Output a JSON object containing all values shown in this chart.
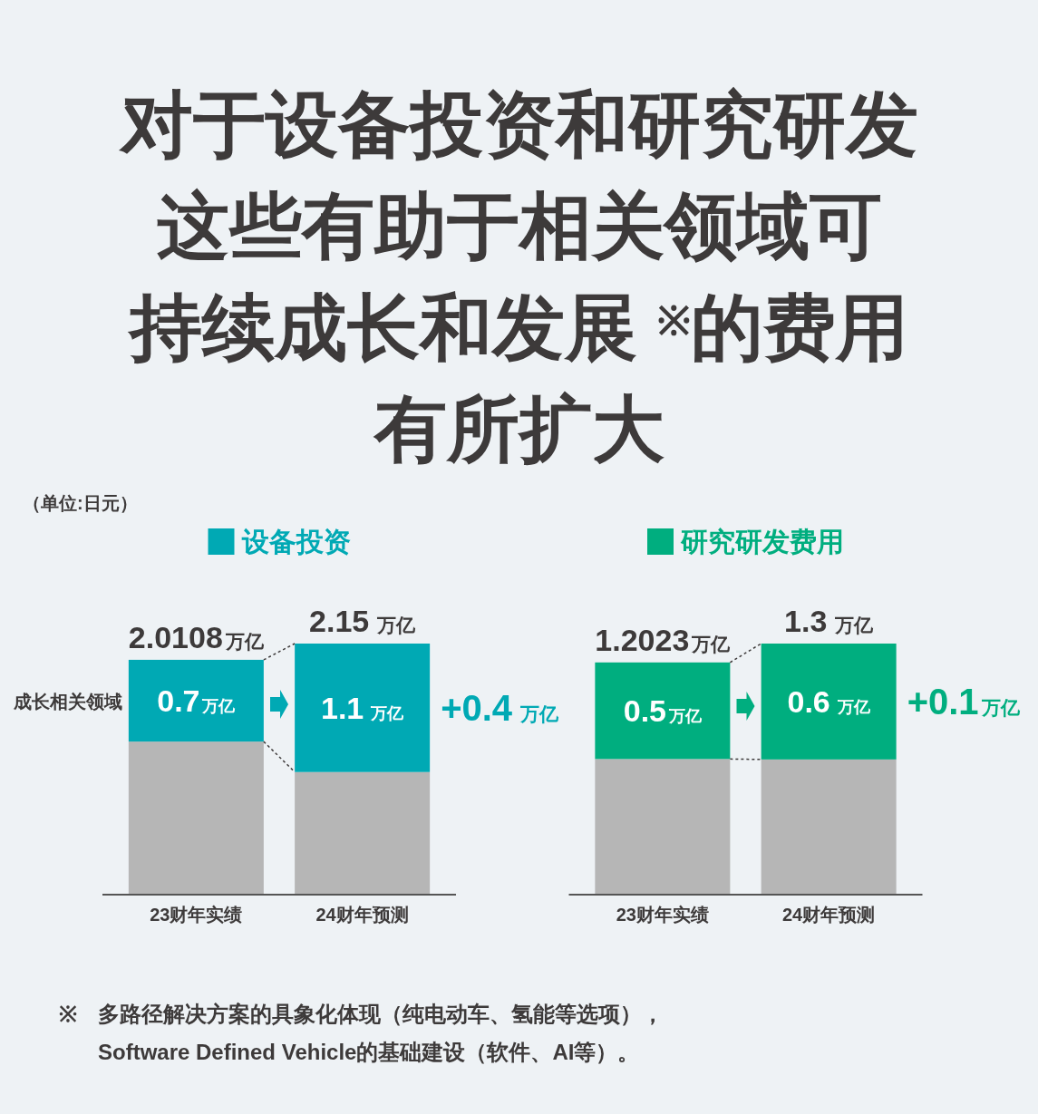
{
  "chart_data": [
    {
      "type": "other",
      "title": "对于设备投资和研究研发这些有助于相关领域可持续成长和发展 $^{※}$的费用有所扩大"
    },
    {
      "type": "bar",
      "stacked": true,
      "categories": [
        "23财年实绩",
        "24财年预测"
      ],
      "series": [
        {
          "color": "#b6b6b6",
          "values": [
            1.3108,
            1.05
          ]
        },
        {
          "name": "设备投资",
          "color": "#00a9b4",
          "values": [
            0.7,
            1.1
          ],
          "value_labels": [
            "0.7万亿",
            "1.1 万亿"
          ]
        }
      ],
      "totals": [
        "2.0108万亿",
        "2.15 万亿"
      ],
      "legend": "top",
      "subtitle": "（单位:日元）",
      "annotations": [
        "成长相关领域",
        "+0.4 万亿"
      ]
    },
    {
      "type": "bar",
      "stacked": true,
      "categories": [
        "23财年实绩",
        "24财年预测"
      ],
      "series": [
        {
          "color": "#b6b6b6",
          "values": [
            0.7023,
            0.7
          ]
        },
        {
          "name": "研究研发费用",
          "color": "#00ae7f",
          "values": [
            0.5,
            0.6
          ],
          "value_labels": [
            "0.5万亿",
            "0.6 万亿"
          ]
        }
      ],
      "totals": [
        "1.2023万亿",
        "1.3 万亿"
      ],
      "legend": "top",
      "annotations": [
        "+0.1万亿"
      ]
    },
    {
      "type": "other",
      "annotations": [
        "※ 多路径解决方案的具象化体现（纯电动车、氢能等选项），\nSoftware Defined Vehicle的基础建设（软件、AI等）。"
      ]
    }
  ]
}
